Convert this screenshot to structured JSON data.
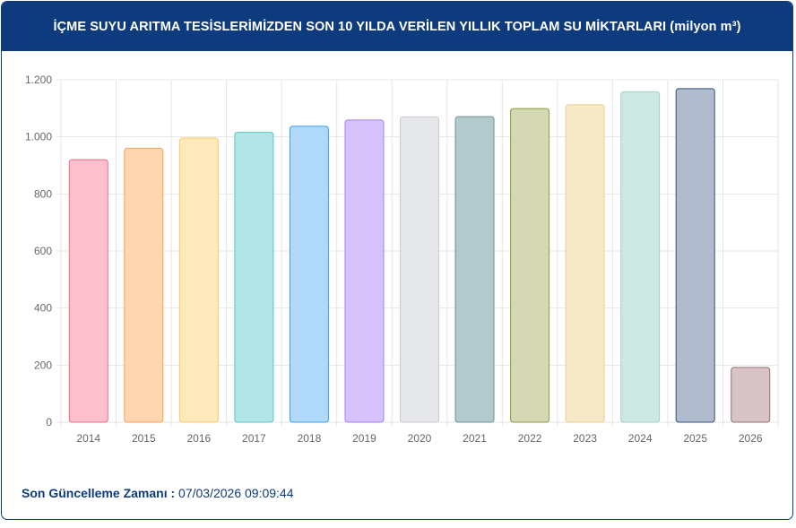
{
  "header": {
    "title": "İÇME SUYU ARITMA TESİSLERİMİZDEN SON 10 YILDA VERİLEN YILLIK TOPLAM SU MİKTARLARI (milyon m³)"
  },
  "footer": {
    "label": "Son Güncelleme Zamanı :",
    "value": "07/03/2026 09:09:44"
  },
  "chart_data": {
    "type": "bar",
    "categories": [
      "2014",
      "2015",
      "2016",
      "2017",
      "2018",
      "2019",
      "2020",
      "2021",
      "2022",
      "2023",
      "2024",
      "2025",
      "2026"
    ],
    "values": [
      920,
      960,
      996,
      1016,
      1037,
      1059,
      1070,
      1071,
      1099,
      1113,
      1158,
      1169,
      192
    ],
    "ylim": [
      0,
      1200
    ],
    "yticks": [
      0,
      200,
      400,
      600,
      800,
      1000,
      1200
    ],
    "ytick_labels": [
      "0",
      "200",
      "400",
      "600",
      "800",
      "1.000",
      "1.200"
    ],
    "grid": true,
    "colors": [
      "#ffc0cd",
      "#ffd6b0",
      "#ffe8bb",
      "#b3e6e6",
      "#b0d8f8",
      "#d6c3fd",
      "#e6e7ea",
      "#b3cacd",
      "#d4d9b3",
      "#f7e9c8",
      "#cde8e2",
      "#b0bccd",
      "#d8c3c6"
    ],
    "borders": [
      "#f36a8c",
      "#f7a155",
      "#fac966",
      "#58c5c5",
      "#3aa0ea",
      "#a67ef4",
      "#c8cacf",
      "#6a9398",
      "#8f9b43",
      "#ebcf8f",
      "#9fd0c5",
      "#364f7c",
      "#99707a"
    ]
  }
}
